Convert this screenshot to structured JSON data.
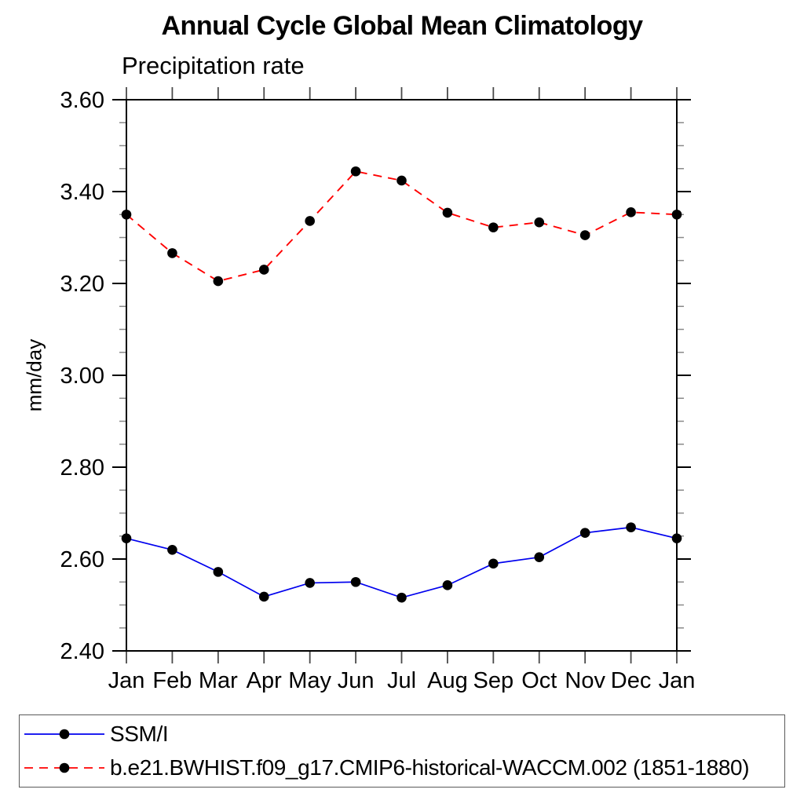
{
  "chart_data": {
    "type": "line",
    "title": "Annual Cycle Global Mean Climatology",
    "subtitle": "Precipitation rate",
    "xlabel": "",
    "ylabel": "mm/day",
    "ylim": [
      2.4,
      3.6
    ],
    "ytick_labels": [
      "2.40",
      "2.60",
      "2.80",
      "3.00",
      "3.20",
      "3.40",
      "3.60"
    ],
    "ytick_step": 0.2,
    "yminor_step": 0.05,
    "grid": false,
    "legend_position": "bottom",
    "categories": [
      "Jan",
      "Feb",
      "Mar",
      "Apr",
      "May",
      "Jun",
      "Jul",
      "Aug",
      "Sep",
      "Oct",
      "Nov",
      "Dec",
      "Jan"
    ],
    "series": [
      {
        "name": "SSM/I",
        "color": "#0000ee",
        "line_style": "solid",
        "marker": "filled-circle",
        "marker_color": "#000000",
        "values": [
          2.645,
          2.62,
          2.572,
          2.518,
          2.548,
          2.55,
          2.516,
          2.543,
          2.59,
          2.604,
          2.657,
          2.669,
          2.645
        ]
      },
      {
        "name": "b.e21.BWHIST.f09_g17.CMIP6-historical-WACCM.002 (1851-1880)",
        "color": "#ff0000",
        "line_style": "dashed",
        "marker": "filled-circle",
        "marker_color": "#000000",
        "values": [
          3.35,
          3.266,
          3.205,
          3.23,
          3.336,
          3.444,
          3.424,
          3.354,
          3.322,
          3.333,
          3.305,
          3.355,
          3.35
        ]
      }
    ]
  }
}
